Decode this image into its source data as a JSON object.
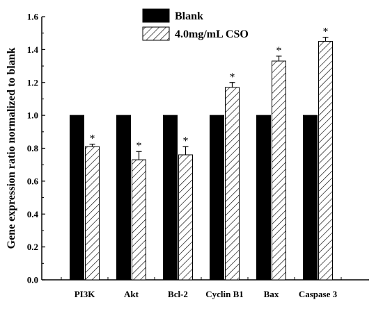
{
  "chart_data": {
    "type": "bar",
    "ylabel": "Gene expression ratio normalized to blank",
    "xlabel": "",
    "ylim": [
      0.0,
      1.6
    ],
    "yticks": [
      "0.0",
      "0.2",
      "0.4",
      "0.6",
      "0.8",
      "1.0",
      "1.2",
      "1.4",
      "1.6"
    ],
    "categories": [
      "PI3K",
      "Akt",
      "Bcl-2",
      "Cyclin B1",
      "Bax",
      "Caspase 3"
    ],
    "series": [
      {
        "name": "Blank",
        "pattern": "solid",
        "color": "#000000",
        "values": [
          1.0,
          1.0,
          1.0,
          1.0,
          1.0,
          1.0
        ]
      },
      {
        "name": "4.0mg/mL CSO",
        "pattern": "hatched",
        "color": "#000000",
        "values": [
          0.81,
          0.73,
          0.76,
          1.17,
          1.33,
          1.45
        ],
        "errors": [
          0.015,
          0.05,
          0.05,
          0.03,
          0.03,
          0.025
        ],
        "annotations": [
          "*",
          "*",
          "*",
          "*",
          "*",
          "*"
        ]
      }
    ],
    "legend_position": "top-center",
    "grid": false
  }
}
